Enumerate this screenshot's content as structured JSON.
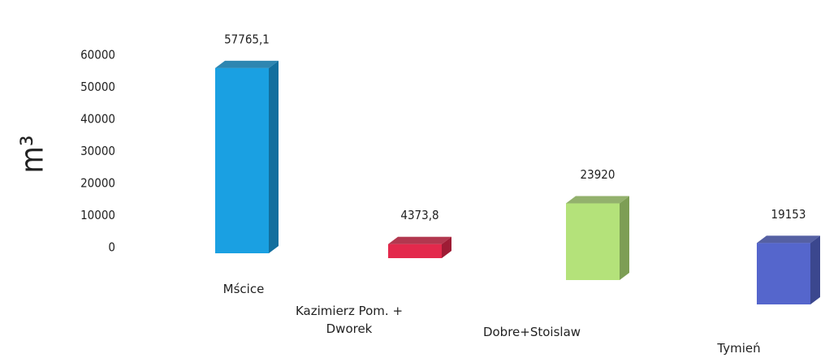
{
  "chart_data": {
    "type": "bar3d",
    "y_label": "m³",
    "categories": [
      "Mścice",
      "Kazimierz Pom. + Dworek",
      "Dobre+Stoislaw",
      "Tymień"
    ],
    "values": [
      57765.1,
      4373.8,
      23920,
      19153
    ],
    "value_labels": [
      "57765,1",
      "4373,8",
      "23920",
      "19153"
    ],
    "colors": [
      "#1aa0e2",
      "#e3294c",
      "#b4e27a",
      "#5566cc"
    ],
    "ylim": [
      0,
      60000
    ],
    "yticks": [
      0,
      10000,
      20000,
      30000,
      40000,
      50000,
      60000
    ]
  }
}
